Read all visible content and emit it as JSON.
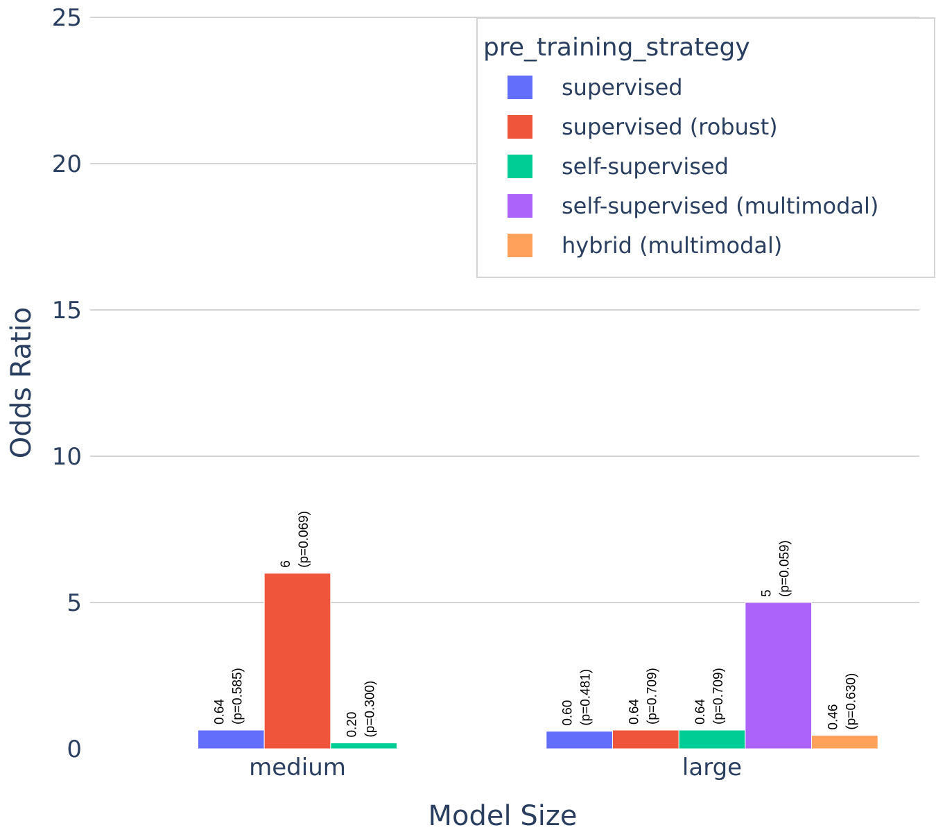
{
  "chart_data": {
    "type": "bar",
    "title": "",
    "xlabel": "Model Size",
    "ylabel": "Odds Ratio",
    "ylim": [
      0,
      25
    ],
    "yticks": [
      0,
      5,
      10,
      15,
      20,
      25
    ],
    "grid": true,
    "categories": [
      "medium",
      "large"
    ],
    "legend": {
      "title": "pre_training_strategy",
      "placement": "top-right"
    },
    "series": [
      {
        "name": "supervised",
        "color": "#636efa",
        "values": [
          0.64,
          0.6
        ],
        "labels": [
          [
            "0.64",
            "(p=0.585)"
          ],
          [
            "0.60",
            "(p=0.481)"
          ]
        ]
      },
      {
        "name": "supervised (robust)",
        "color": "#ef553b",
        "values": [
          6,
          0.64
        ],
        "labels": [
          [
            "6",
            "(p=0.069)"
          ],
          [
            "0.64",
            "(p=0.709)"
          ]
        ]
      },
      {
        "name": "self-supervised",
        "color": "#00cc96",
        "values": [
          0.2,
          0.64
        ],
        "labels": [
          [
            "0.20",
            "(p=0.300)"
          ],
          [
            "0.64",
            "(p=0.709)"
          ]
        ]
      },
      {
        "name": "self-supervised (multimodal)",
        "color": "#ab63fa",
        "values": [
          null,
          5
        ],
        "labels": [
          null,
          [
            "5",
            "(p=0.059)"
          ]
        ]
      },
      {
        "name": "hybrid (multimodal)",
        "color": "#ffa15a",
        "values": [
          null,
          0.46
        ],
        "labels": [
          null,
          [
            "0.46",
            "(p=0.630)"
          ]
        ]
      }
    ]
  }
}
